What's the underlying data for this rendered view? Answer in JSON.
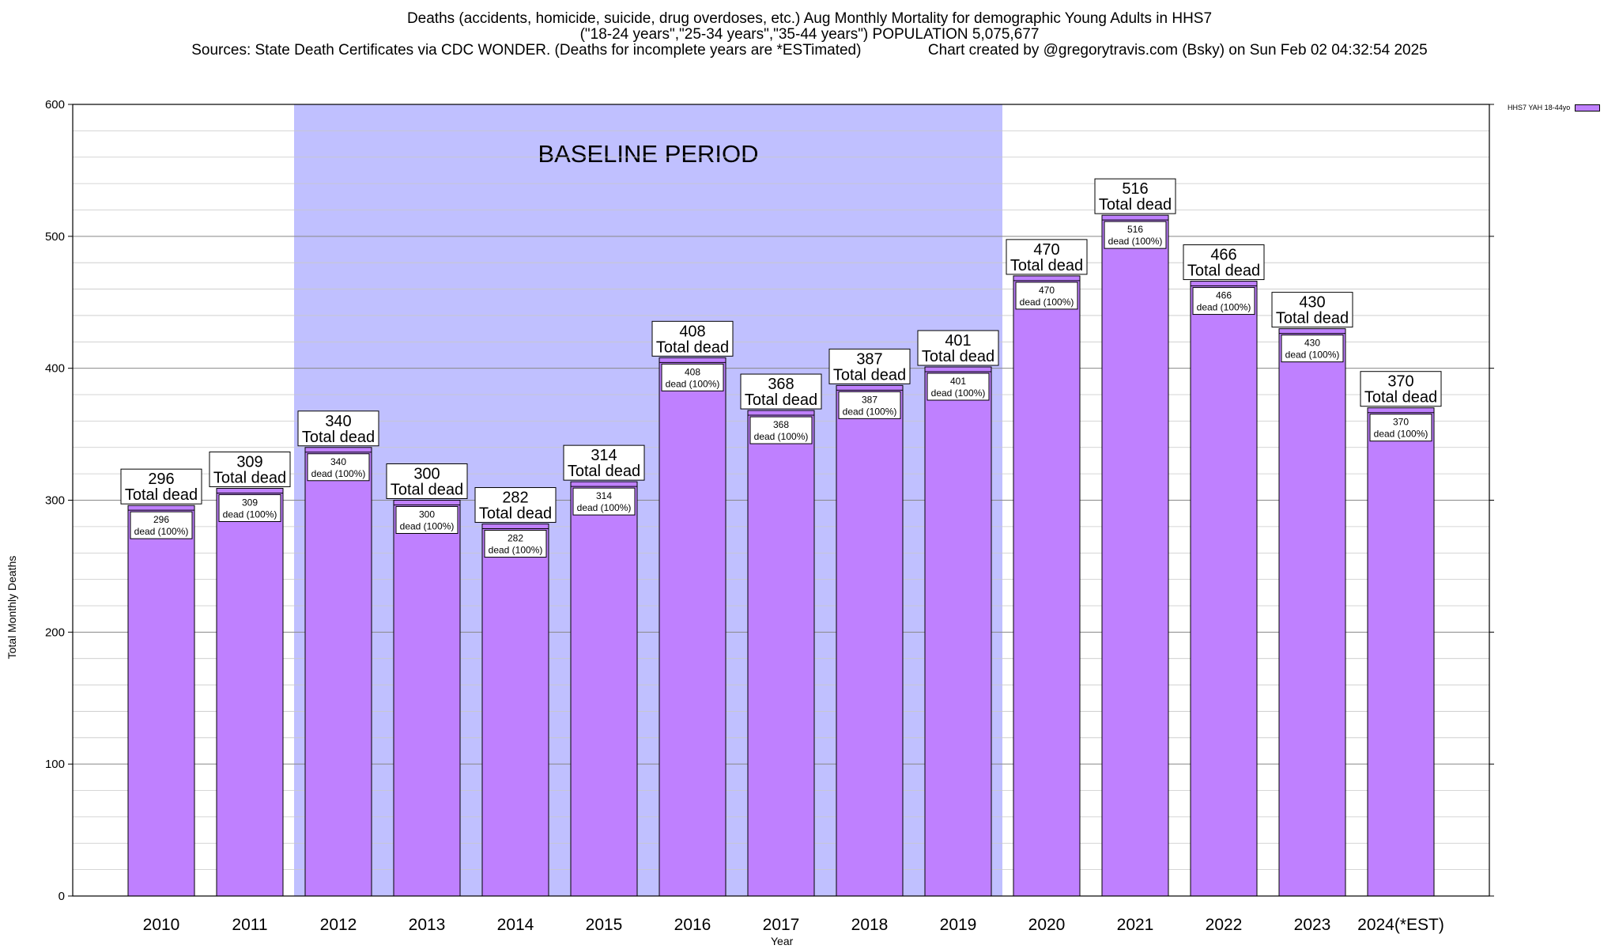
{
  "title": {
    "line1": "Deaths (accidents, homicide, suicide, drug overdoses, etc.) Aug Monthly Mortality for demographic Young Adults in HHS7",
    "line2": "(\"18-24 years\",\"25-34 years\",\"35-44 years\") POPULATION 5,075,677",
    "line3": "Sources: State Death Certificates via CDC WONDER. (Deaths for incomplete years are *ESTimated)                Chart created by @gregorytravis.com (Bsky) on Sun Feb 02 04:32:54 2025"
  },
  "legend": {
    "label": "HHS7 YAH 18-44yo"
  },
  "colors": {
    "bar": "#bf80ff",
    "baseline_band": "#c0c0ff",
    "grid": "#c8c8c8"
  },
  "chart_data": {
    "type": "bar",
    "categories": [
      "2010",
      "2011",
      "2012",
      "2013",
      "2014",
      "2015",
      "2016",
      "2017",
      "2018",
      "2019",
      "2020",
      "2021",
      "2022",
      "2023",
      "2024(*EST)"
    ],
    "series": [
      {
        "name": "HHS7 YAH 18-44yo",
        "values": [
          296,
          309,
          340,
          300,
          282,
          314,
          408,
          368,
          387,
          401,
          470,
          516,
          466,
          430,
          370
        ]
      }
    ],
    "xlabel": "Year",
    "ylabel": "Total Monthly Deaths",
    "ylim": [
      0,
      600
    ],
    "yticks": [
      0,
      100,
      200,
      300,
      400,
      500,
      600
    ],
    "grid": true,
    "legend_position": "top-right",
    "total_label": "Total dead",
    "inner_label_suffix": "dead (100%)",
    "baseline": {
      "label": "BASELINE PERIOD",
      "start": "2012",
      "end": "2019"
    }
  }
}
